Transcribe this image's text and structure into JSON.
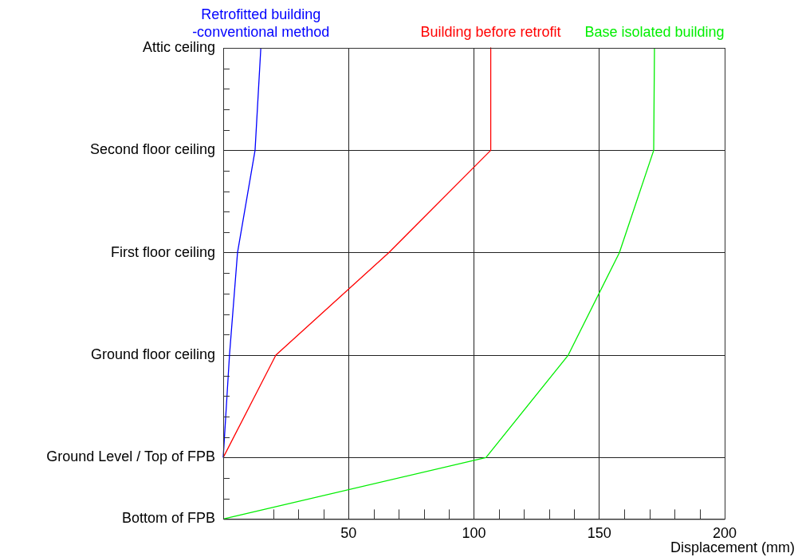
{
  "chart_data": {
    "type": "line",
    "orientation": "horizontal",
    "xlabel": "Displacement (mm)",
    "categories": [
      "Attic ceiling",
      null,
      null,
      null,
      null,
      "Second floor ceiling",
      null,
      null,
      null,
      null,
      "First floor ceiling",
      null,
      null,
      null,
      null,
      "Ground floor ceiling",
      null,
      null,
      null,
      null,
      "Ground Level / Top of FPB",
      null,
      null,
      "Bottom of FPB"
    ],
    "xlim": [
      0,
      200
    ],
    "xticks": [
      {
        "value": 20,
        "label": null
      },
      {
        "value": 30,
        "label": null
      },
      {
        "value": 40,
        "label": null
      },
      50,
      {
        "value": 60,
        "label": null
      },
      {
        "value": 70,
        "label": null
      },
      {
        "value": 80,
        "label": null
      },
      {
        "value": 90,
        "label": null
      },
      100,
      {
        "value": 110,
        "label": null
      },
      {
        "value": 120,
        "label": null
      },
      {
        "value": 130,
        "label": null
      },
      {
        "value": 140,
        "label": null
      },
      150,
      {
        "value": 160,
        "label": null
      },
      {
        "value": 170,
        "label": null
      },
      {
        "value": 180,
        "label": null
      },
      {
        "value": 190,
        "label": null
      },
      200
    ],
    "grid": true,
    "legend": false,
    "marker": "none",
    "line_style": "solid",
    "series": [
      {
        "name": "Retrofitted building\n-conventional method",
        "color": "#0000ff",
        "values": [
          15,
          null,
          null,
          null,
          null,
          12.7,
          null,
          null,
          null,
          null,
          5.7,
          null,
          null,
          null,
          null,
          2.5,
          null,
          null,
          null,
          null,
          0,
          null,
          null,
          null
        ]
      },
      {
        "name": "Building before retrofit",
        "color": "#ff0000",
        "values": [
          106.7,
          null,
          null,
          null,
          null,
          106.7,
          null,
          null,
          null,
          null,
          66,
          null,
          null,
          null,
          null,
          21,
          null,
          null,
          null,
          null,
          0,
          null,
          null,
          null
        ]
      },
      {
        "name": "Base isolated building",
        "color": "#00ee00",
        "values": [
          172,
          null,
          null,
          null,
          null,
          171.7,
          null,
          null,
          null,
          null,
          158,
          null,
          null,
          null,
          null,
          137.6,
          null,
          null,
          null,
          null,
          104.8,
          null,
          null,
          0
        ]
      }
    ]
  }
}
